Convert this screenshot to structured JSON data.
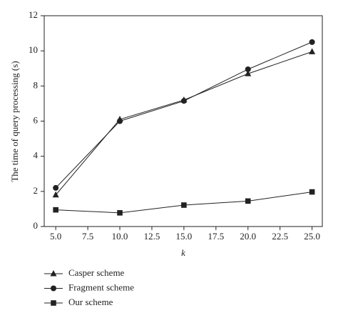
{
  "chart_data": {
    "type": "line",
    "x_label": "k",
    "y_label": "The time of query processing (s)",
    "xlim": [
      4.1,
      25.8
    ],
    "ylim": [
      0,
      12
    ],
    "xticks": [
      {
        "value": 5,
        "label": "5.0"
      },
      7.5,
      {
        "value": 10,
        "label": "10.0"
      },
      12.5,
      {
        "value": 15,
        "label": "15.0"
      },
      17.5,
      {
        "value": 20,
        "label": "20.0"
      },
      22.5,
      {
        "value": 25,
        "label": "25.0"
      }
    ],
    "yticks": [
      0,
      2,
      4,
      6,
      8,
      10,
      12
    ],
    "grid": false,
    "legend": "bottom-left",
    "x": [
      5,
      10,
      15,
      20,
      25
    ],
    "series": [
      {
        "name": "Casper scheme",
        "color": "#222222",
        "marker": "triangle",
        "values": [
          1.8,
          6.1,
          7.2,
          8.7,
          9.95
        ]
      },
      {
        "name": "Fragment scheme",
        "color": "#222222",
        "marker": "circle",
        "values": [
          2.2,
          6.0,
          7.15,
          8.95,
          10.5
        ]
      },
      {
        "name": "Our scheme",
        "color": "#222222",
        "marker": "square",
        "values": [
          0.95,
          0.78,
          1.22,
          1.45,
          1.97
        ]
      }
    ]
  }
}
